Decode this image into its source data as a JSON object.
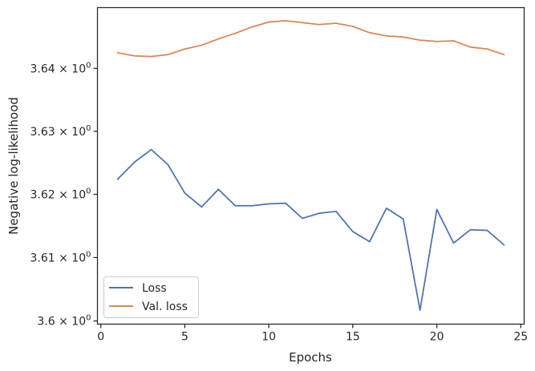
{
  "chart_data": {
    "type": "line",
    "xlabel": "Epochs",
    "ylabel": "Negative log-likelihood",
    "xlim": [
      -0.2,
      25.2
    ],
    "ylim": [
      3.5995,
      3.6497
    ],
    "yscale": "log",
    "grid": false,
    "legend_position": "lower-left",
    "x_ticks": [
      0,
      5,
      10,
      15,
      20,
      25
    ],
    "x_tick_labels": [
      "0",
      "5",
      "10",
      "15",
      "20",
      "25"
    ],
    "y_ticks": [
      3.6,
      3.61,
      3.62,
      3.63,
      3.64
    ],
    "y_tick_labels": [
      {
        "mantissa": "3.6",
        "base": "10",
        "exp": "0"
      },
      {
        "mantissa": "3.61",
        "base": "10",
        "exp": "0"
      },
      {
        "mantissa": "3.62",
        "base": "10",
        "exp": "0"
      },
      {
        "mantissa": "3.63",
        "base": "10",
        "exp": "0"
      },
      {
        "mantissa": "3.64",
        "base": "10",
        "exp": "0"
      }
    ],
    "x": [
      1,
      2,
      3,
      4,
      5,
      6,
      7,
      8,
      9,
      10,
      11,
      12,
      13,
      14,
      15,
      16,
      17,
      18,
      19,
      20,
      21,
      22,
      23,
      24
    ],
    "series": [
      {
        "name": "Loss",
        "color": "#4c72b0",
        "values": [
          3.6224,
          3.6251,
          3.6271,
          3.6247,
          3.6202,
          3.618,
          3.6208,
          3.6182,
          3.6182,
          3.6185,
          3.6186,
          3.6162,
          3.617,
          3.6173,
          3.6141,
          3.6125,
          3.6178,
          3.6161,
          3.6017,
          3.6176,
          3.6123,
          3.6144,
          3.6143,
          3.612
        ]
      },
      {
        "name": "Val. loss",
        "color": "#dd8452",
        "values": [
          3.6425,
          3.642,
          3.6419,
          3.6422,
          3.6431,
          3.6437,
          3.6447,
          3.6456,
          3.6466,
          3.6474,
          3.6476,
          3.6473,
          3.647,
          3.6472,
          3.6467,
          3.6457,
          3.6452,
          3.645,
          3.6445,
          3.6443,
          3.6444,
          3.6434,
          3.6431,
          3.6422
        ]
      }
    ]
  }
}
